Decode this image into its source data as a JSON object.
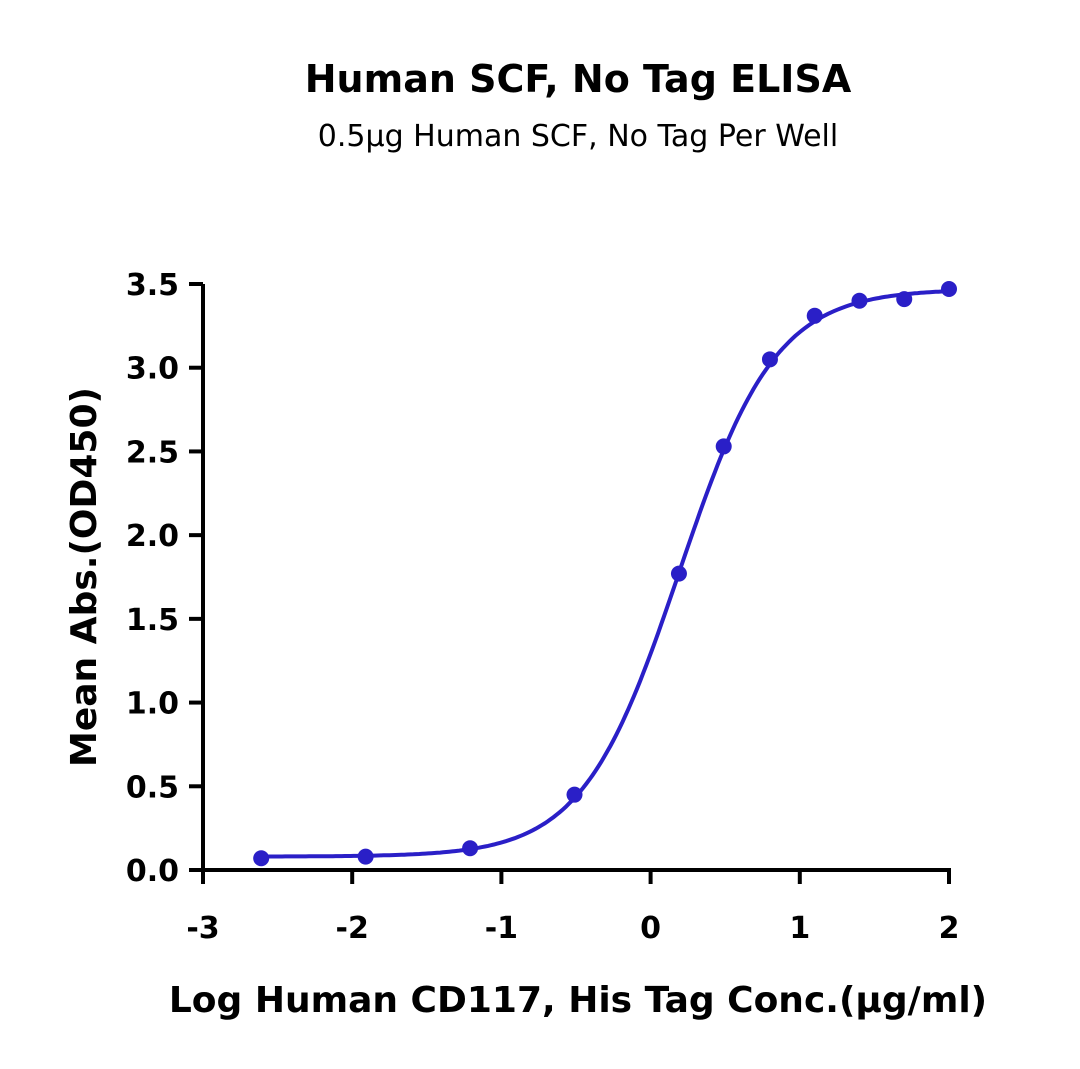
{
  "chart_data": {
    "type": "scatter",
    "title": "Human SCF, No Tag ELISA",
    "subtitle": "0.5μg Human SCF, No Tag Per Well",
    "xlabel": "Log Human CD117, His Tag Conc.(μg/ml)",
    "ylabel": "Mean Abs.(OD450)",
    "xlim": [
      -3,
      2
    ],
    "ylim": [
      0,
      3.5
    ],
    "xticks": [
      "-3",
      "-2",
      "-1",
      "0",
      "1",
      "2"
    ],
    "yticks": [
      "0.0",
      "0.5",
      "1.0",
      "1.5",
      "2.0",
      "2.5",
      "3.0",
      "3.5"
    ],
    "grid": false,
    "color": "#2a1fc7",
    "fit": "sigmoidal curve through points",
    "x": [
      -2.61,
      -1.91,
      -1.21,
      -0.51,
      0.19,
      0.49,
      0.8,
      1.1,
      1.4,
      1.7,
      2.0
    ],
    "y": [
      0.07,
      0.08,
      0.13,
      0.45,
      1.77,
      2.53,
      3.05,
      3.31,
      3.4,
      3.41,
      3.47
    ]
  }
}
